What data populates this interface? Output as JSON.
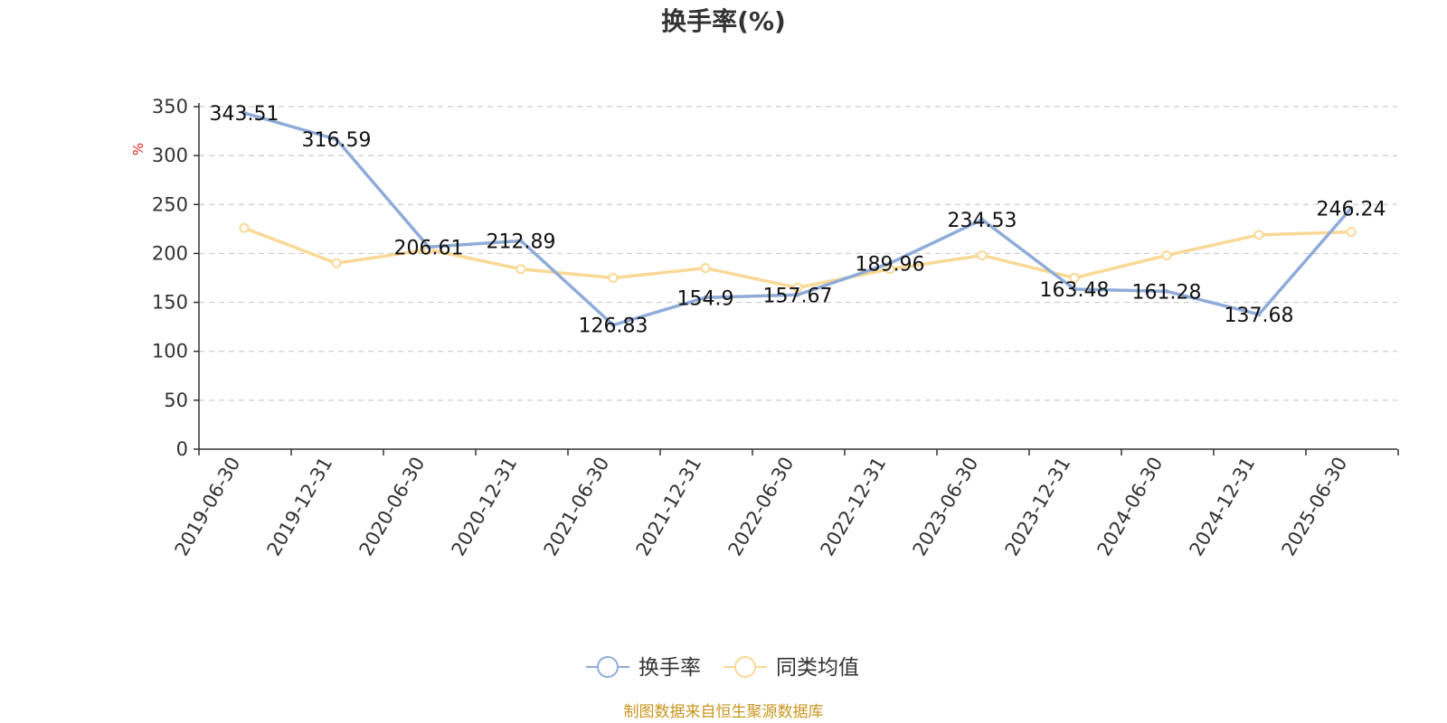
{
  "chart_data": {
    "type": "line",
    "title": "换手率(%)",
    "ylabel": "%",
    "ylim": [
      0,
      350
    ],
    "yticks": [
      0,
      50,
      100,
      150,
      200,
      250,
      300,
      350
    ],
    "grid": true,
    "legend_position": "bottom",
    "categories": [
      "2019-06-30",
      "2019-12-31",
      "2020-06-30",
      "2020-12-31",
      "2021-06-30",
      "2021-12-31",
      "2022-06-30",
      "2022-12-31",
      "2023-06-30",
      "2023-12-31",
      "2024-06-30",
      "2024-12-31",
      "2025-06-30"
    ],
    "series": [
      {
        "name": "换手率",
        "color": "#8fabd8",
        "values": [
          343.51,
          316.59,
          206.61,
          212.89,
          126.83,
          154.9,
          157.67,
          189.96,
          234.53,
          163.48,
          161.28,
          137.68,
          246.24
        ],
        "labels": [
          "343.51",
          "316.59",
          "206.61",
          "212.89",
          "126.83",
          "154.9",
          "157.67",
          "189.96",
          "234.53",
          "163.48",
          "161.28",
          "137.68",
          "246.24"
        ]
      },
      {
        "name": "同类均值",
        "color": "#fad896",
        "values": [
          226,
          190,
          204,
          184,
          175,
          185,
          165,
          184,
          198,
          175,
          198,
          219,
          222
        ]
      }
    ]
  },
  "source_note": "制图数据来自恒生聚源数据库"
}
